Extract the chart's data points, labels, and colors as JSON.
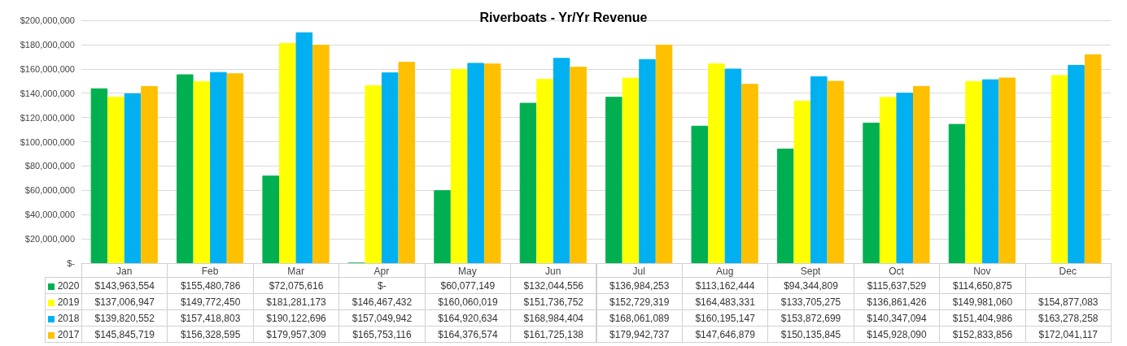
{
  "chart_data": {
    "type": "bar",
    "title": "Riverboats - Yr/Yr Revenue",
    "categories": [
      "Jan",
      "Feb",
      "Mar",
      "Apr",
      "May",
      "Jun",
      "Jul",
      "Aug",
      "Sept",
      "Oct",
      "Nov",
      "Dec"
    ],
    "series": [
      {
        "name": "2020",
        "color": "#00b050",
        "values": [
          143963554,
          155480786,
          72075616,
          0,
          60077149,
          132044556,
          136984253,
          113162444,
          94344809,
          115637529,
          114650875,
          null
        ],
        "value_labels": [
          "$143,963,554",
          "$155,480,786",
          "$72,075,616",
          "$-",
          "$60,077,149",
          "$132,044,556",
          "$136,984,253",
          "$113,162,444",
          "$94,344,809",
          "$115,637,529",
          "$114,650,875",
          null
        ]
      },
      {
        "name": "2019",
        "color": "#ffff00",
        "values": [
          137006947,
          149772450,
          181281173,
          146467432,
          160060019,
          151736752,
          152729319,
          164483331,
          133705275,
          136861426,
          149981060,
          154877083
        ],
        "value_labels": [
          "$137,006,947",
          "$149,772,450",
          "$181,281,173",
          "$146,467,432",
          "$160,060,019",
          "$151,736,752",
          "$152,729,319",
          "$164,483,331",
          "$133,705,275",
          "$136,861,426",
          "$149,981,060",
          "$154,877,083"
        ]
      },
      {
        "name": "2018",
        "color": "#00b0f0",
        "values": [
          139820552,
          157418803,
          190122696,
          157049942,
          164920634,
          168984404,
          168061089,
          160195147,
          153872699,
          140347094,
          151404986,
          163278258
        ],
        "value_labels": [
          "$139,820,552",
          "$157,418,803",
          "$190,122,696",
          "$157,049,942",
          "$164,920,634",
          "$168,984,404",
          "$168,061,089",
          "$160,195,147",
          "$153,872,699",
          "$140,347,094",
          "$151,404,986",
          "$163,278,258"
        ]
      },
      {
        "name": "2017",
        "color": "#ffc000",
        "values": [
          145845719,
          156328595,
          179957309,
          165753116,
          164376574,
          161725138,
          179942737,
          147646879,
          150135845,
          145928090,
          152833856,
          172041117
        ],
        "value_labels": [
          "$145,845,719",
          "$156,328,595",
          "$179,957,309",
          "$165,753,116",
          "$164,376,574",
          "$161,725,138",
          "$179,942,737",
          "$147,646,879",
          "$150,135,845",
          "$145,928,090",
          "$152,833,856",
          "$172,041,117"
        ]
      }
    ],
    "ylim": [
      0,
      200000000
    ],
    "yticks": [
      {
        "value": 0,
        "label": "$-"
      },
      {
        "value": 20000000,
        "label": "$20,000,000"
      },
      {
        "value": 40000000,
        "label": "$40,000,000"
      },
      {
        "value": 60000000,
        "label": "$60,000,000"
      },
      {
        "value": 80000000,
        "label": "$80,000,000"
      },
      {
        "value": 100000000,
        "label": "$100,000,000"
      },
      {
        "value": 120000000,
        "label": "$120,000,000"
      },
      {
        "value": 140000000,
        "label": "$140,000,000"
      },
      {
        "value": 160000000,
        "label": "$160,000,000"
      },
      {
        "value": 180000000,
        "label": "$180,000,000"
      },
      {
        "value": 200000000,
        "label": "$200,000,000"
      }
    ],
    "grid": "y",
    "legend": "bottom"
  }
}
